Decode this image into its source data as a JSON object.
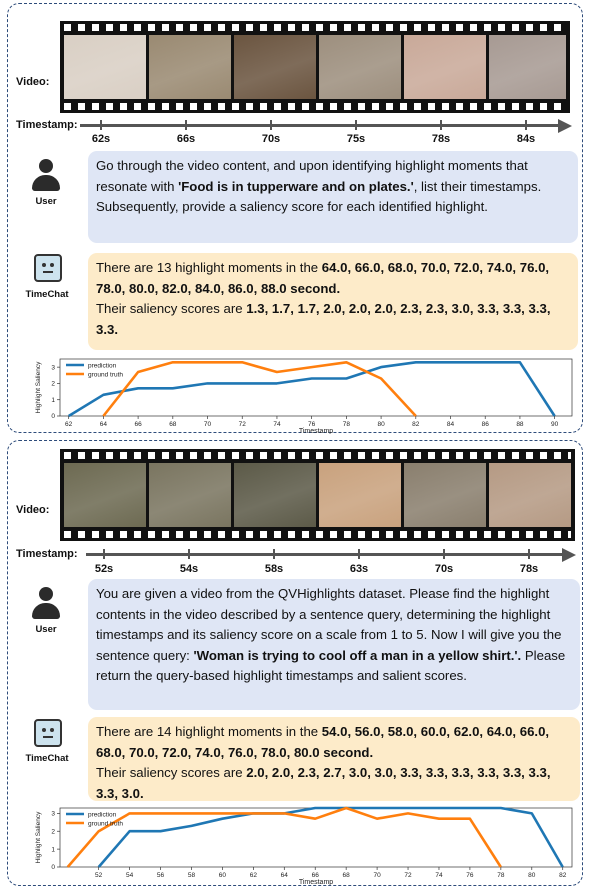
{
  "examples": [
    {
      "video_label": "Video:",
      "timestamp_label": "Timestamp:",
      "timestamps": [
        "62s",
        "66s",
        "70s",
        "75s",
        "78s",
        "84s"
      ],
      "frame_colors": [
        "#d9cfc4",
        "#9a8a72",
        "#6b5540",
        "#9d8f7e",
        "#c9a999",
        "#a79a93"
      ],
      "user_name": "User",
      "user_query_pre": "Go through the video content, and upon identifying highlight moments that resonate with ",
      "user_query_bold": "'Food is in tupperware and on plates.'",
      "user_query_post": ", list their timestamps. Subsequently, provide a saliency score for each identified highlight.",
      "bot_name": "TimeChat",
      "bot_pre": "There are 13 highlight moments in the ",
      "bot_times": "64.0, 66.0, 68.0, 70.0, 72.0, 74.0, 76.0, 78.0, 80.0, 82.0, 84.0, 86.0, 88.0 second.",
      "bot_scores_pre": "Their saliency scores are ",
      "bot_scores": "1.3, 1.7, 1.7, 2.0, 2.0, 2.0, 2.3, 2.3, 3.0, 3.3, 3.3, 3.3, 3.3."
    },
    {
      "video_label": "Video:",
      "timestamp_label": "Timestamp:",
      "timestamps": [
        "52s",
        "54s",
        "58s",
        "63s",
        "70s",
        "78s"
      ],
      "frame_colors": [
        "#6d6a52",
        "#7a7560",
        "#5c5a48",
        "#c9a27e",
        "#8a7f6e",
        "#b59a84"
      ],
      "user_name": "User",
      "user_query_pre": "You are given a video from the QVHighlights dataset. Please find the highlight contents in the video described by a sentence query, determining the highlight timestamps and its saliency score on a scale from 1 to 5. Now I will give you the sentence query: ",
      "user_query_bold": "'Woman is trying to cool off a man in a yellow shirt.'.",
      "user_query_post": " Please return the query-based highlight timestamps and salient scores.",
      "bot_name": "TimeChat",
      "bot_pre": "There are 14 highlight moments in the ",
      "bot_times": "54.0, 56.0, 58.0, 60.0, 62.0, 64.0, 66.0, 68.0, 70.0, 72.0, 74.0, 76.0, 78.0, 80.0 second.",
      "bot_scores_pre": "Their saliency scores are ",
      "bot_scores": "2.0, 2.0, 2.3, 2.7, 3.0, 3.0, 3.3, 3.3, 3.3, 3.3, 3.3, 3.3, 3.3, 3.0."
    }
  ],
  "chart_data": [
    {
      "type": "line",
      "xlabel": "Timestamp",
      "ylabel": "Highlight Saliency",
      "xticks": [
        62,
        64,
        66,
        68,
        70,
        72,
        74,
        76,
        78,
        80,
        82,
        84,
        86,
        88,
        90
      ],
      "yticks": [
        0,
        1,
        2,
        3
      ],
      "xlim": [
        61.5,
        91
      ],
      "ylim": [
        0,
        3.5
      ],
      "legend_position": "top-left",
      "series": [
        {
          "name": "prediction",
          "color": "#1f77b4",
          "x": [
            62,
            64,
            66,
            68,
            70,
            72,
            74,
            76,
            78,
            80,
            82,
            84,
            86,
            88,
            90
          ],
          "y": [
            0,
            1.3,
            1.7,
            1.7,
            2.0,
            2.0,
            2.0,
            2.3,
            2.3,
            3.0,
            3.3,
            3.3,
            3.3,
            3.3,
            0
          ]
        },
        {
          "name": "ground truth",
          "color": "#ff7f0e",
          "x": [
            64,
            66,
            68,
            70,
            72,
            74,
            76,
            78,
            80,
            82
          ],
          "y": [
            0,
            2.7,
            3.3,
            3.3,
            3.3,
            2.7,
            3.0,
            3.3,
            2.3,
            0
          ]
        }
      ]
    },
    {
      "type": "line",
      "xlabel": "Timestamp",
      "ylabel": "Highlight Saliency",
      "xticks": [
        52,
        54,
        56,
        58,
        60,
        62,
        64,
        66,
        68,
        70,
        72,
        74,
        76,
        78,
        80,
        82
      ],
      "yticks": [
        0,
        1,
        2,
        3
      ],
      "xlim": [
        49.5,
        82.6
      ],
      "ylim": [
        0,
        3.3
      ],
      "legend_position": "top-left",
      "series": [
        {
          "name": "prediction",
          "color": "#1f77b4",
          "x": [
            52,
            54,
            56,
            58,
            60,
            62,
            64,
            66,
            68,
            70,
            72,
            74,
            76,
            78,
            80,
            82
          ],
          "y": [
            0,
            2.0,
            2.0,
            2.3,
            2.7,
            3.0,
            3.0,
            3.3,
            3.3,
            3.3,
            3.3,
            3.3,
            3.3,
            3.3,
            3.0,
            0
          ]
        },
        {
          "name": "ground truth",
          "color": "#ff7f0e",
          "x": [
            50,
            52,
            54,
            56,
            58,
            60,
            62,
            64,
            66,
            68,
            70,
            72,
            74,
            76,
            78
          ],
          "y": [
            0,
            2.0,
            3.0,
            3.0,
            3.0,
            3.0,
            3.0,
            3.0,
            2.7,
            3.3,
            2.7,
            3.0,
            2.7,
            2.7,
            0
          ]
        }
      ]
    }
  ]
}
